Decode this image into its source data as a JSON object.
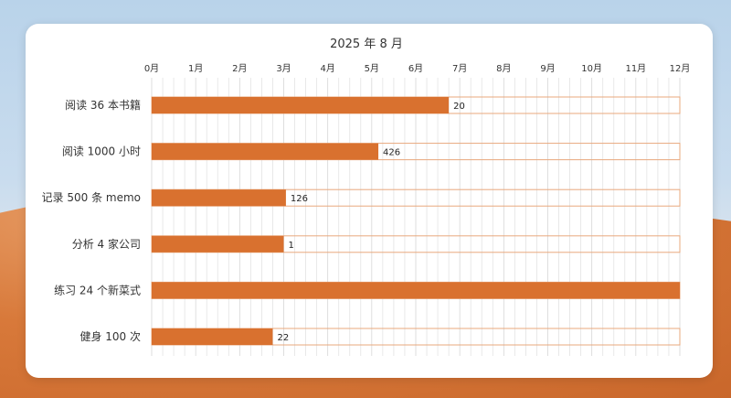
{
  "chart_data": {
    "type": "bar",
    "orientation": "horizontal",
    "title": "2025 年 8 月",
    "x_ticks": [
      "0月",
      "1月",
      "2月",
      "3月",
      "4月",
      "5月",
      "6月",
      "7月",
      "8月",
      "9月",
      "10月",
      "11月",
      "12月"
    ],
    "xlim": [
      0,
      12
    ],
    "categories": [
      "阅读 36 本书籍",
      "阅读 1000 小时",
      "记录 500 条 memo",
      "分析 4 家公司",
      "练习 24 个新菜式",
      "健身 100 次"
    ],
    "values": [
      6.75,
      5.15,
      3.05,
      3.0,
      12,
      2.75
    ],
    "data_labels": [
      "20",
      "426",
      "126",
      "1",
      "",
      "22"
    ],
    "grid": true,
    "colors": {
      "bar": "#d9712f",
      "bar_outline": "#e8a87d",
      "grid": "#e3e3e3"
    }
  }
}
